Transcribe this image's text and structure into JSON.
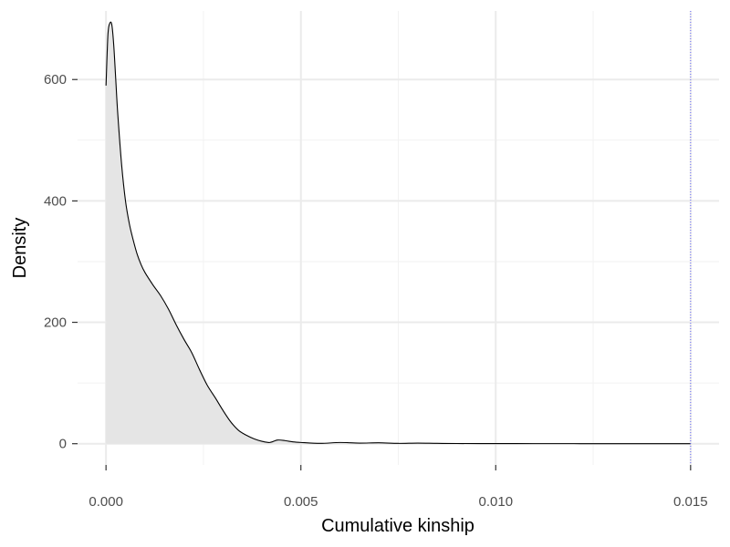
{
  "chart_data": {
    "type": "area",
    "title": "",
    "xlabel": "Cumulative kinship",
    "ylabel": "Density",
    "xlim": [
      -0.00073,
      0.01573
    ],
    "ylim": [
      -35,
      713
    ],
    "x_ticks": [
      0.0,
      0.005,
      0.01,
      0.015
    ],
    "x_tick_labels": [
      "0.000",
      "0.005",
      "0.010",
      "0.015"
    ],
    "y_ticks": [
      0,
      200,
      400,
      600
    ],
    "y_tick_labels": [
      "0",
      "200",
      "400",
      "600"
    ],
    "grid": true,
    "legend": "none",
    "series": [
      {
        "x": [
          0.0,
          5e-05,
          0.0001,
          0.00015,
          0.0002,
          0.00025,
          0.0003,
          0.0004,
          0.0005,
          0.0006,
          0.0007,
          0.0008,
          0.0009,
          0.001,
          0.0012,
          0.0014,
          0.0016,
          0.0018,
          0.002,
          0.0022,
          0.0024,
          0.0026,
          0.0028,
          0.003,
          0.0032,
          0.0034,
          0.0036,
          0.0038,
          0.004,
          0.0042,
          0.0044,
          0.0046,
          0.0048,
          0.005,
          0.0055,
          0.006,
          0.0065,
          0.007,
          0.0075,
          0.008,
          0.0085,
          0.009,
          0.01,
          0.011,
          0.012,
          0.013,
          0.014,
          0.015
        ],
        "y": [
          590,
          675,
          693,
          690,
          655,
          600,
          545,
          460,
          400,
          362,
          335,
          312,
          295,
          282,
          262,
          244,
          222,
          196,
          172,
          150,
          122,
          96,
          76,
          55,
          36,
          22,
          14,
          8,
          4,
          2,
          6,
          5,
          3,
          2,
          0.5,
          2,
          1,
          1.5,
          0.5,
          1,
          0.5,
          0.3,
          0.2,
          0.1,
          0.1,
          0,
          0,
          0
        ],
        "fill": "#e5e5e5",
        "stroke": "#000000"
      }
    ],
    "reference_lines": [
      {
        "x": 0.015,
        "color": "#6666ff",
        "style": "dotted"
      }
    ]
  }
}
